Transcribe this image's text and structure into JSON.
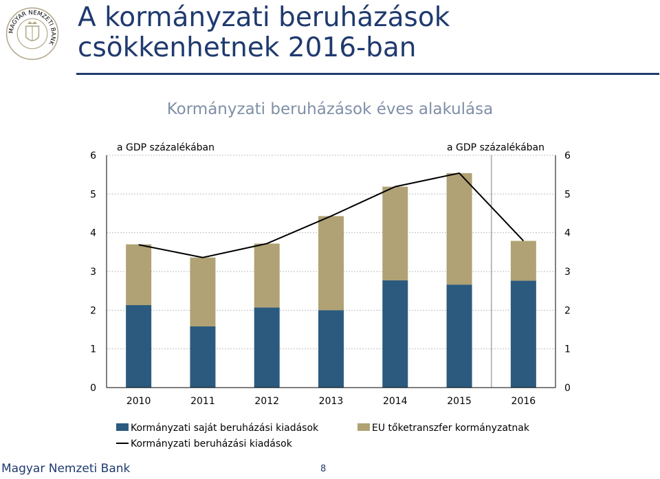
{
  "slide": {
    "title": "A kormányzati beruházások csökkenhetnek 2016-ban",
    "footer_org": "Magyar Nemzeti Bank",
    "page_number": "8",
    "logo_text": "MAGYAR NEMZETI BANK"
  },
  "colors": {
    "title": "#1f3a6e",
    "chart_title": "#7f8fa6",
    "own_series": "#2b5a7e",
    "eu_series": "#b0a274",
    "line_series": "#000000"
  },
  "chart_data": {
    "type": "bar",
    "stacked": true,
    "title": "Kormányzati beruházások éves alakulása",
    "left_axis_label": "a GDP százalékában",
    "right_axis_label": "a GDP százalékában",
    "categories": [
      "2010",
      "2011",
      "2012",
      "2013",
      "2014",
      "2015",
      "2016"
    ],
    "ylim": [
      0,
      6
    ],
    "yticks": [
      0,
      1,
      2,
      3,
      4,
      5,
      6
    ],
    "series": [
      {
        "name": "Kormányzati saját beruházási kiadások",
        "type": "bar",
        "values": [
          2.13,
          1.58,
          2.07,
          2.0,
          2.77,
          2.66,
          2.76
        ]
      },
      {
        "name": "EU tőketranszfer kormányzatnak",
        "type": "bar",
        "values": [
          1.57,
          1.78,
          1.65,
          2.43,
          2.42,
          2.88,
          1.03
        ]
      },
      {
        "name": "Kormányzati beruházási kiadások",
        "type": "line",
        "values": [
          3.69,
          3.36,
          3.72,
          4.43,
          5.19,
          5.54,
          3.79
        ]
      }
    ],
    "forecast_from": "2016",
    "grid": true,
    "legend_position": "bottom"
  }
}
